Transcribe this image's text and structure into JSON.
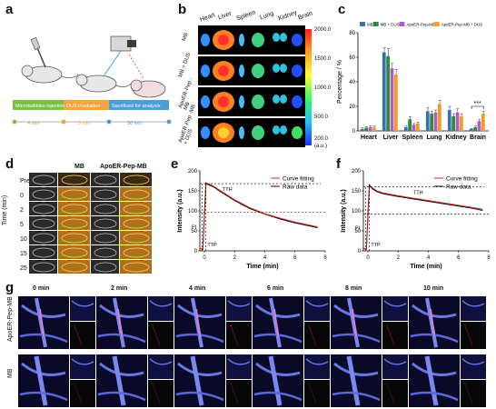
{
  "panels": {
    "a": "a",
    "b": "b",
    "c": "c",
    "d": "d",
    "e": "e",
    "f": "f",
    "g": "g"
  },
  "panel_a": {
    "steps": [
      "Microbubbles injection",
      "DUS irradiation",
      "Sacrificed for analysis"
    ],
    "durations": [
      "4 min",
      "3 min",
      "30 min"
    ],
    "colors": [
      "#7ac142",
      "#f4a340",
      "#4a9fd8"
    ]
  },
  "panel_b": {
    "columns": [
      "Heart",
      "Liver",
      "Spleen",
      "Lung",
      "Kidney",
      "Brain"
    ],
    "rows": [
      "MB",
      "MB + DUS",
      "ApoER-Pep -MB",
      "ApoER-Pep -MB + DUS"
    ],
    "scale_ticks": [
      "2000.0",
      "1500.0",
      "1000.0",
      "500.0",
      "200.0"
    ],
    "scale_unit": "(a.u.)"
  },
  "panel_d": {
    "col_headers": [
      "MB",
      "ApoER-Pep-MB"
    ],
    "row_labels": [
      "Pre",
      "0",
      "2",
      "5",
      "10",
      "15",
      "25"
    ],
    "axis_label": "Time (min)"
  },
  "panel_g": {
    "times": [
      "0 min",
      "2 min",
      "4 min",
      "6 min",
      "8 min",
      "10 min"
    ],
    "row_labels": [
      "ApoER-Pep-MB",
      "MB"
    ]
  },
  "chart_data": [
    {
      "type": "bar",
      "panel": "c",
      "ylabel": "Percentage / %",
      "ylim": [
        0,
        80
      ],
      "yticks": [
        0,
        20,
        40,
        60,
        80
      ],
      "categories": [
        "Heart",
        "Liver",
        "Spleen",
        "Lung",
        "Kidney",
        "Brain"
      ],
      "legend_position": "top",
      "significance": "***",
      "series": [
        {
          "name": "MB",
          "color": "#3d6fb5",
          "values": [
            1.5,
            64,
            3,
            16,
            17,
            1.5
          ],
          "errors": [
            1,
            4,
            1,
            3,
            3,
            0.5
          ]
        },
        {
          "name": "MB + DUS",
          "color": "#2e8b3e",
          "values": [
            2.5,
            61,
            9.5,
            14,
            12,
            3
          ],
          "errors": [
            1,
            6,
            2,
            2,
            2,
            1
          ]
        },
        {
          "name": "ApoER-Pep-MB",
          "color": "#b05cc8",
          "values": [
            3,
            51,
            5,
            15,
            15,
            8
          ],
          "errors": [
            1,
            4,
            1,
            2,
            3,
            1.5
          ]
        },
        {
          "name": "ApoER-Pep-MB + DUS",
          "color": "#f39a2a",
          "values": [
            3,
            46,
            6,
            22,
            12,
            14
          ],
          "errors": [
            1,
            4,
            1,
            3,
            2,
            2
          ]
        }
      ]
    },
    {
      "type": "line",
      "panel": "e",
      "xlabel": "Time (min)",
      "ylabel": "Intensity (a.u.)",
      "xlim": [
        -0.3,
        8
      ],
      "ylim": [
        0,
        200
      ],
      "xticks": [
        0,
        2,
        4,
        6,
        8
      ],
      "yticks": [
        0,
        50,
        100,
        150,
        200
      ],
      "annotations": [
        "PI",
        "TTP",
        "TTH"
      ],
      "legend_position": "top-right",
      "series": [
        {
          "name": "Curve fitting",
          "color": "#e02020",
          "x": [
            -0.3,
            -0.1,
            0,
            0.1,
            0.3,
            0.6,
            1,
            1.5,
            2,
            2.5,
            3,
            4,
            5,
            6,
            7,
            7.5
          ],
          "y": [
            5,
            5,
            80,
            165,
            168,
            162,
            152,
            140,
            128,
            118,
            108,
            93,
            82,
            72,
            64,
            60
          ]
        },
        {
          "name": "Raw data",
          "color": "#111111",
          "x": [
            -0.3,
            -0.1,
            0,
            0.1,
            0.3,
            0.6,
            1,
            1.5,
            2,
            2.5,
            3,
            4,
            5,
            6,
            7,
            7.5
          ],
          "y": [
            6,
            4,
            90,
            170,
            165,
            160,
            150,
            138,
            126,
            116,
            106,
            92,
            80,
            70,
            62,
            58
          ]
        }
      ]
    },
    {
      "type": "line",
      "panel": "f",
      "xlabel": "Time (min)",
      "ylabel": "Intensity (a.u.)",
      "xlim": [
        -0.3,
        8
      ],
      "ylim": [
        0,
        200
      ],
      "xticks": [
        0,
        2,
        4,
        6,
        8
      ],
      "yticks": [
        0,
        50,
        100,
        150,
        200
      ],
      "annotations": [
        "PI",
        "TTP",
        "TTH"
      ],
      "legend_position": "top-right",
      "series": [
        {
          "name": "Curve fitting",
          "color": "#e02020",
          "x": [
            -0.3,
            -0.1,
            0,
            0.1,
            0.3,
            0.6,
            1,
            2,
            3,
            4,
            5,
            6,
            7,
            7.6
          ],
          "y": [
            5,
            5,
            80,
            160,
            158,
            150,
            145,
            138,
            132,
            126,
            120,
            114,
            108,
            104
          ]
        },
        {
          "name": "Raw data",
          "color": "#111111",
          "x": [
            -0.3,
            -0.1,
            0,
            0.1,
            0.3,
            0.6,
            1,
            2,
            3,
            4,
            5,
            6,
            7,
            7.6
          ],
          "y": [
            6,
            4,
            90,
            165,
            155,
            148,
            143,
            136,
            130,
            124,
            118,
            112,
            106,
            101
          ]
        }
      ]
    }
  ]
}
